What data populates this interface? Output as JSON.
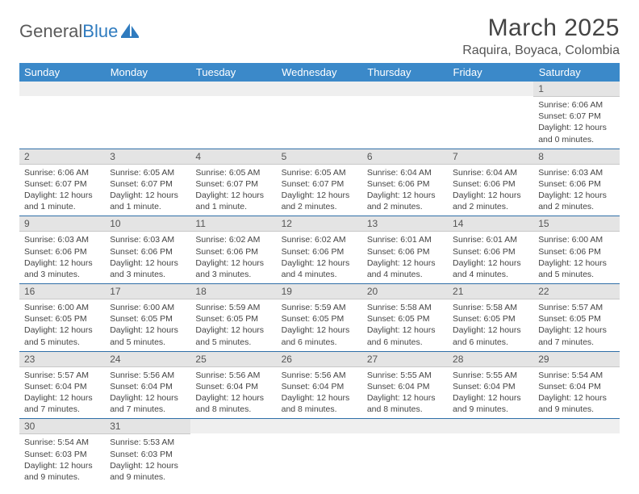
{
  "logo": {
    "text1": "General",
    "text2": "Blue"
  },
  "title": "March 2025",
  "location": "Raquira, Boyaca, Colombia",
  "colors": {
    "header_bg": "#3b89c9",
    "header_text": "#ffffff",
    "daynum_bg": "#e4e4e4",
    "cell_border": "#2f6fa8",
    "logo_gray": "#5a5a5a",
    "logo_blue": "#2f7bbf"
  },
  "weekdays": [
    "Sunday",
    "Monday",
    "Tuesday",
    "Wednesday",
    "Thursday",
    "Friday",
    "Saturday"
  ],
  "weeks": [
    [
      {
        "blank": true
      },
      {
        "blank": true
      },
      {
        "blank": true
      },
      {
        "blank": true
      },
      {
        "blank": true
      },
      {
        "blank": true
      },
      {
        "day": "1",
        "sunrise": "Sunrise: 6:06 AM",
        "sunset": "Sunset: 6:07 PM",
        "daylight": "Daylight: 12 hours and 0 minutes."
      }
    ],
    [
      {
        "day": "2",
        "sunrise": "Sunrise: 6:06 AM",
        "sunset": "Sunset: 6:07 PM",
        "daylight": "Daylight: 12 hours and 1 minute."
      },
      {
        "day": "3",
        "sunrise": "Sunrise: 6:05 AM",
        "sunset": "Sunset: 6:07 PM",
        "daylight": "Daylight: 12 hours and 1 minute."
      },
      {
        "day": "4",
        "sunrise": "Sunrise: 6:05 AM",
        "sunset": "Sunset: 6:07 PM",
        "daylight": "Daylight: 12 hours and 1 minute."
      },
      {
        "day": "5",
        "sunrise": "Sunrise: 6:05 AM",
        "sunset": "Sunset: 6:07 PM",
        "daylight": "Daylight: 12 hours and 2 minutes."
      },
      {
        "day": "6",
        "sunrise": "Sunrise: 6:04 AM",
        "sunset": "Sunset: 6:06 PM",
        "daylight": "Daylight: 12 hours and 2 minutes."
      },
      {
        "day": "7",
        "sunrise": "Sunrise: 6:04 AM",
        "sunset": "Sunset: 6:06 PM",
        "daylight": "Daylight: 12 hours and 2 minutes."
      },
      {
        "day": "8",
        "sunrise": "Sunrise: 6:03 AM",
        "sunset": "Sunset: 6:06 PM",
        "daylight": "Daylight: 12 hours and 2 minutes."
      }
    ],
    [
      {
        "day": "9",
        "sunrise": "Sunrise: 6:03 AM",
        "sunset": "Sunset: 6:06 PM",
        "daylight": "Daylight: 12 hours and 3 minutes."
      },
      {
        "day": "10",
        "sunrise": "Sunrise: 6:03 AM",
        "sunset": "Sunset: 6:06 PM",
        "daylight": "Daylight: 12 hours and 3 minutes."
      },
      {
        "day": "11",
        "sunrise": "Sunrise: 6:02 AM",
        "sunset": "Sunset: 6:06 PM",
        "daylight": "Daylight: 12 hours and 3 minutes."
      },
      {
        "day": "12",
        "sunrise": "Sunrise: 6:02 AM",
        "sunset": "Sunset: 6:06 PM",
        "daylight": "Daylight: 12 hours and 4 minutes."
      },
      {
        "day": "13",
        "sunrise": "Sunrise: 6:01 AM",
        "sunset": "Sunset: 6:06 PM",
        "daylight": "Daylight: 12 hours and 4 minutes."
      },
      {
        "day": "14",
        "sunrise": "Sunrise: 6:01 AM",
        "sunset": "Sunset: 6:06 PM",
        "daylight": "Daylight: 12 hours and 4 minutes."
      },
      {
        "day": "15",
        "sunrise": "Sunrise: 6:00 AM",
        "sunset": "Sunset: 6:06 PM",
        "daylight": "Daylight: 12 hours and 5 minutes."
      }
    ],
    [
      {
        "day": "16",
        "sunrise": "Sunrise: 6:00 AM",
        "sunset": "Sunset: 6:05 PM",
        "daylight": "Daylight: 12 hours and 5 minutes."
      },
      {
        "day": "17",
        "sunrise": "Sunrise: 6:00 AM",
        "sunset": "Sunset: 6:05 PM",
        "daylight": "Daylight: 12 hours and 5 minutes."
      },
      {
        "day": "18",
        "sunrise": "Sunrise: 5:59 AM",
        "sunset": "Sunset: 6:05 PM",
        "daylight": "Daylight: 12 hours and 5 minutes."
      },
      {
        "day": "19",
        "sunrise": "Sunrise: 5:59 AM",
        "sunset": "Sunset: 6:05 PM",
        "daylight": "Daylight: 12 hours and 6 minutes."
      },
      {
        "day": "20",
        "sunrise": "Sunrise: 5:58 AM",
        "sunset": "Sunset: 6:05 PM",
        "daylight": "Daylight: 12 hours and 6 minutes."
      },
      {
        "day": "21",
        "sunrise": "Sunrise: 5:58 AM",
        "sunset": "Sunset: 6:05 PM",
        "daylight": "Daylight: 12 hours and 6 minutes."
      },
      {
        "day": "22",
        "sunrise": "Sunrise: 5:57 AM",
        "sunset": "Sunset: 6:05 PM",
        "daylight": "Daylight: 12 hours and 7 minutes."
      }
    ],
    [
      {
        "day": "23",
        "sunrise": "Sunrise: 5:57 AM",
        "sunset": "Sunset: 6:04 PM",
        "daylight": "Daylight: 12 hours and 7 minutes."
      },
      {
        "day": "24",
        "sunrise": "Sunrise: 5:56 AM",
        "sunset": "Sunset: 6:04 PM",
        "daylight": "Daylight: 12 hours and 7 minutes."
      },
      {
        "day": "25",
        "sunrise": "Sunrise: 5:56 AM",
        "sunset": "Sunset: 6:04 PM",
        "daylight": "Daylight: 12 hours and 8 minutes."
      },
      {
        "day": "26",
        "sunrise": "Sunrise: 5:56 AM",
        "sunset": "Sunset: 6:04 PM",
        "daylight": "Daylight: 12 hours and 8 minutes."
      },
      {
        "day": "27",
        "sunrise": "Sunrise: 5:55 AM",
        "sunset": "Sunset: 6:04 PM",
        "daylight": "Daylight: 12 hours and 8 minutes."
      },
      {
        "day": "28",
        "sunrise": "Sunrise: 5:55 AM",
        "sunset": "Sunset: 6:04 PM",
        "daylight": "Daylight: 12 hours and 9 minutes."
      },
      {
        "day": "29",
        "sunrise": "Sunrise: 5:54 AM",
        "sunset": "Sunset: 6:04 PM",
        "daylight": "Daylight: 12 hours and 9 minutes."
      }
    ],
    [
      {
        "day": "30",
        "sunrise": "Sunrise: 5:54 AM",
        "sunset": "Sunset: 6:03 PM",
        "daylight": "Daylight: 12 hours and 9 minutes."
      },
      {
        "day": "31",
        "sunrise": "Sunrise: 5:53 AM",
        "sunset": "Sunset: 6:03 PM",
        "daylight": "Daylight: 12 hours and 9 minutes."
      },
      {
        "blank": true
      },
      {
        "blank": true
      },
      {
        "blank": true
      },
      {
        "blank": true
      },
      {
        "blank": true
      }
    ]
  ]
}
